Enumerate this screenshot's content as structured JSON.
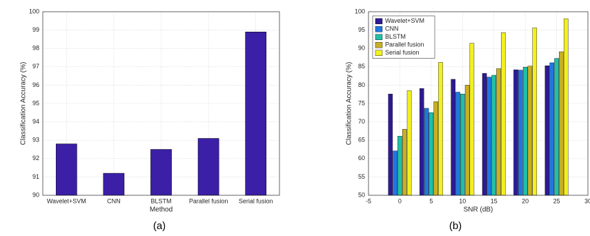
{
  "chart_data": [
    {
      "type": "bar",
      "panel_label": "(a)",
      "xlabel": "Method",
      "ylabel": "Classification Accuracy (%)",
      "categories": [
        "Wavelet+SVM",
        "CNN",
        "BLSTM",
        "Parallel fusion",
        "Serial fusion"
      ],
      "values": [
        92.8,
        91.2,
        92.5,
        93.1,
        98.9
      ],
      "color": "#3b1fa6",
      "ylim": [
        90,
        100
      ],
      "yticks": [
        90,
        91,
        92,
        93,
        94,
        95,
        96,
        97,
        98,
        99,
        100
      ],
      "grid": true
    },
    {
      "type": "grouped_bar",
      "panel_label": "(b)",
      "xlabel": "SNR (dB)",
      "ylabel": "Classification Accuracy (%)",
      "x": [
        0,
        5,
        10,
        15,
        20,
        25
      ],
      "series": [
        {
          "name": "Wavelet+SVM",
          "color": "#2e1a94",
          "values": [
            77.6,
            79.1,
            81.6,
            83.2,
            84.2,
            85.3
          ]
        },
        {
          "name": "CNN",
          "color": "#1f78e0",
          "values": [
            62.1,
            73.7,
            78.1,
            82.2,
            84.1,
            86.1
          ]
        },
        {
          "name": "BLSTM",
          "color": "#20bfa8",
          "values": [
            66.1,
            72.5,
            77.6,
            82.7,
            84.9,
            87.3
          ]
        },
        {
          "name": "Parallel fusion",
          "color": "#c8b022",
          "values": [
            68.0,
            75.5,
            80.0,
            84.5,
            85.2,
            89.1
          ]
        },
        {
          "name": "Serial fusion",
          "color": "#f2f020",
          "values": [
            78.5,
            86.2,
            91.4,
            94.3,
            95.6,
            98.1
          ]
        }
      ],
      "xlim": [
        -5,
        30
      ],
      "xticks": [
        -5,
        0,
        5,
        10,
        15,
        20,
        25,
        30
      ],
      "ylim": [
        50,
        100
      ],
      "yticks": [
        50,
        55,
        60,
        65,
        70,
        75,
        80,
        85,
        90,
        95,
        100
      ],
      "grid": true,
      "legend": "upper-left"
    }
  ]
}
